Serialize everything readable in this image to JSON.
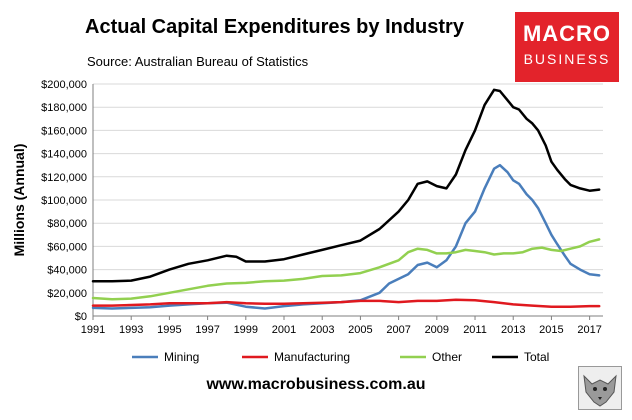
{
  "brand": {
    "logo_line1": "MACRO",
    "logo_line2": "BUSINESS",
    "footer_url": "www.macrobusiness.com.au",
    "accent_color": "#e3232b"
  },
  "chart_data": {
    "type": "line",
    "title": "Actual Capital Expenditures by Industry",
    "subtitle": "Source: Australian Bureau of Statistics",
    "xlabel": "",
    "ylabel": "Millions (Annual)",
    "xlim": [
      1991,
      2017.7
    ],
    "ylim": [
      0,
      200000
    ],
    "x_ticks": [
      1991,
      1993,
      1995,
      1997,
      1999,
      2001,
      2003,
      2005,
      2007,
      2009,
      2011,
      2013,
      2015,
      2017
    ],
    "y_ticks": [
      0,
      20000,
      40000,
      60000,
      80000,
      100000,
      120000,
      140000,
      160000,
      180000,
      200000
    ],
    "y_tick_labels": [
      "$0",
      "$20,000",
      "$40,000",
      "$60,000",
      "$80,000",
      "$100,000",
      "$120,000",
      "$140,000",
      "$160,000",
      "$180,000",
      "$200,000"
    ],
    "legend_position": "bottom",
    "series": [
      {
        "name": "Mining",
        "color": "#4a7ebb",
        "points": [
          [
            1991,
            7000
          ],
          [
            1992,
            6500
          ],
          [
            1993,
            7000
          ],
          [
            1994,
            7500
          ],
          [
            1995,
            9000
          ],
          [
            1996,
            10000
          ],
          [
            1997,
            11000
          ],
          [
            1998,
            11500
          ],
          [
            1999,
            8000
          ],
          [
            2000,
            6500
          ],
          [
            2001,
            8500
          ],
          [
            2002,
            10000
          ],
          [
            2003,
            11000
          ],
          [
            2004,
            12000
          ],
          [
            2005,
            13500
          ],
          [
            2006,
            20000
          ],
          [
            2006.5,
            28000
          ],
          [
            2007,
            32000
          ],
          [
            2007.5,
            36000
          ],
          [
            2008,
            44000
          ],
          [
            2008.5,
            46000
          ],
          [
            2009,
            42000
          ],
          [
            2009.5,
            48000
          ],
          [
            2010,
            60000
          ],
          [
            2010.5,
            80000
          ],
          [
            2011,
            90000
          ],
          [
            2011.5,
            110000
          ],
          [
            2012,
            127000
          ],
          [
            2012.3,
            130000
          ],
          [
            2012.7,
            124000
          ],
          [
            2013,
            117000
          ],
          [
            2013.3,
            114000
          ],
          [
            2013.7,
            105000
          ],
          [
            2014,
            100000
          ],
          [
            2014.3,
            93000
          ],
          [
            2014.7,
            80000
          ],
          [
            2015,
            70000
          ],
          [
            2015.3,
            62000
          ],
          [
            2015.7,
            52000
          ],
          [
            2016,
            45000
          ],
          [
            2016.5,
            40000
          ],
          [
            2017,
            36000
          ],
          [
            2017.5,
            35000
          ]
        ]
      },
      {
        "name": "Manufacturing",
        "color": "#e0191f",
        "points": [
          [
            1991,
            9000
          ],
          [
            1992,
            9000
          ],
          [
            1993,
            9500
          ],
          [
            1994,
            10000
          ],
          [
            1995,
            11000
          ],
          [
            1996,
            11000
          ],
          [
            1997,
            11000
          ],
          [
            1998,
            12000
          ],
          [
            1999,
            11000
          ],
          [
            2000,
            10500
          ],
          [
            2001,
            10500
          ],
          [
            2002,
            11000
          ],
          [
            2003,
            11500
          ],
          [
            2004,
            12000
          ],
          [
            2005,
            13000
          ],
          [
            2006,
            13000
          ],
          [
            2007,
            12000
          ],
          [
            2008,
            13000
          ],
          [
            2009,
            13000
          ],
          [
            2010,
            14000
          ],
          [
            2011,
            13500
          ],
          [
            2012,
            12000
          ],
          [
            2013,
            10000
          ],
          [
            2014,
            9000
          ],
          [
            2015,
            8000
          ],
          [
            2016,
            8000
          ],
          [
            2017,
            8500
          ],
          [
            2017.5,
            8500
          ]
        ]
      },
      {
        "name": "Other",
        "color": "#92d050",
        "points": [
          [
            1991,
            15500
          ],
          [
            1992,
            14500
          ],
          [
            1993,
            15000
          ],
          [
            1994,
            17000
          ],
          [
            1995,
            20000
          ],
          [
            1996,
            23000
          ],
          [
            1997,
            26000
          ],
          [
            1998,
            28000
          ],
          [
            1999,
            28500
          ],
          [
            2000,
            30000
          ],
          [
            2001,
            30500
          ],
          [
            2002,
            32000
          ],
          [
            2003,
            34500
          ],
          [
            2004,
            35000
          ],
          [
            2005,
            37000
          ],
          [
            2006,
            42000
          ],
          [
            2007,
            48000
          ],
          [
            2007.5,
            55000
          ],
          [
            2008,
            58000
          ],
          [
            2008.5,
            57000
          ],
          [
            2009,
            54000
          ],
          [
            2009.5,
            54000
          ],
          [
            2010,
            55000
          ],
          [
            2010.5,
            57000
          ],
          [
            2011,
            56000
          ],
          [
            2011.5,
            55000
          ],
          [
            2012,
            53000
          ],
          [
            2012.5,
            54000
          ],
          [
            2013,
            54000
          ],
          [
            2013.5,
            55000
          ],
          [
            2014,
            58000
          ],
          [
            2014.5,
            59000
          ],
          [
            2015,
            57000
          ],
          [
            2015.5,
            56000
          ],
          [
            2016,
            58000
          ],
          [
            2016.5,
            60000
          ],
          [
            2017,
            64000
          ],
          [
            2017.5,
            66000
          ]
        ]
      },
      {
        "name": "Total",
        "color": "#000000",
        "points": [
          [
            1991,
            30000
          ],
          [
            1992,
            30000
          ],
          [
            1993,
            30500
          ],
          [
            1994,
            34000
          ],
          [
            1995,
            40000
          ],
          [
            1996,
            45000
          ],
          [
            1997,
            48000
          ],
          [
            1998,
            52000
          ],
          [
            1998.5,
            51000
          ],
          [
            1999,
            47000
          ],
          [
            2000,
            47000
          ],
          [
            2001,
            49000
          ],
          [
            2002,
            53000
          ],
          [
            2003,
            57000
          ],
          [
            2004,
            61000
          ],
          [
            2005,
            65000
          ],
          [
            2006,
            75000
          ],
          [
            2007,
            90000
          ],
          [
            2007.5,
            100000
          ],
          [
            2008,
            114000
          ],
          [
            2008.5,
            116000
          ],
          [
            2009,
            112000
          ],
          [
            2009.5,
            110000
          ],
          [
            2010,
            122000
          ],
          [
            2010.5,
            143000
          ],
          [
            2011,
            160000
          ],
          [
            2011.5,
            182000
          ],
          [
            2012,
            195000
          ],
          [
            2012.3,
            194000
          ],
          [
            2012.7,
            186000
          ],
          [
            2013,
            180000
          ],
          [
            2013.3,
            178000
          ],
          [
            2013.7,
            170000
          ],
          [
            2014,
            166000
          ],
          [
            2014.3,
            160000
          ],
          [
            2014.7,
            147000
          ],
          [
            2015,
            133000
          ],
          [
            2015.3,
            126000
          ],
          [
            2015.7,
            118000
          ],
          [
            2016,
            113000
          ],
          [
            2016.5,
            110000
          ],
          [
            2017,
            108000
          ],
          [
            2017.5,
            109000
          ]
        ]
      }
    ]
  }
}
